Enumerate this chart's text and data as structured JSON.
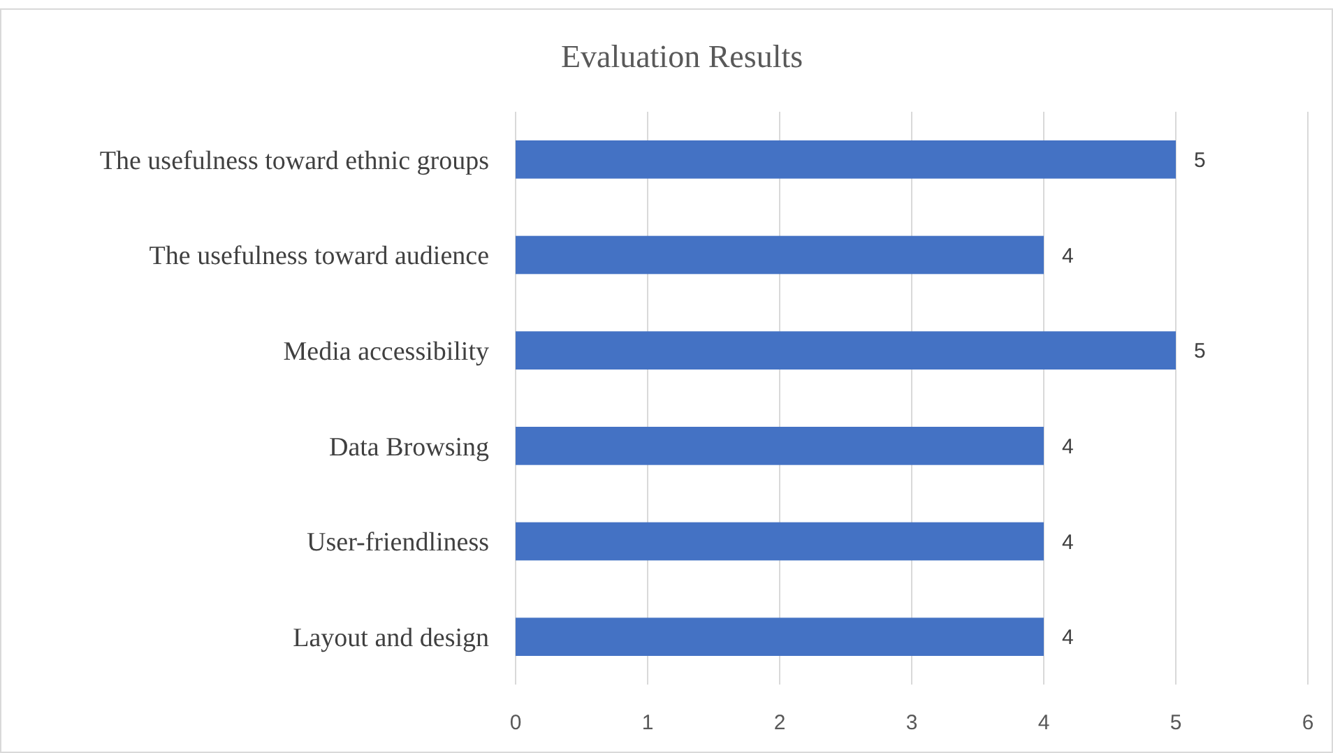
{
  "chart_data": {
    "type": "bar",
    "title": "Evaluation Results",
    "orientation": "horizontal",
    "categories": [
      "The usefulness toward ethnic groups",
      "The usefulness toward audience",
      "Media accessibility",
      "Data Browsing",
      "User-friendliness",
      "Layout and design"
    ],
    "values": [
      5,
      4,
      5,
      4,
      4,
      4
    ],
    "color": "#4472c4",
    "xlim": [
      0,
      6
    ],
    "xticks": [
      0,
      1,
      2,
      3,
      4,
      5,
      6
    ],
    "grid": "x",
    "data_labels": true
  }
}
